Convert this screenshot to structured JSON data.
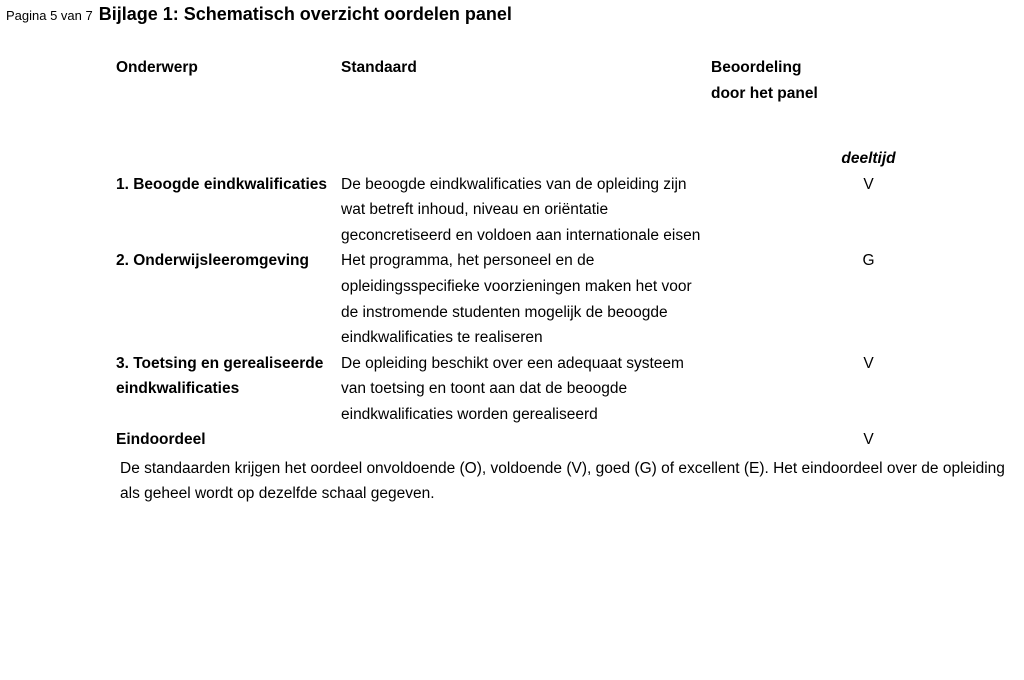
{
  "page_label": "Pagina 5 van 7",
  "title": "Bijlage 1: Schematisch overzicht oordelen panel",
  "headers": {
    "onderwerp": "Onderwerp",
    "standaard": "Standaard",
    "beoordeling_line1": "Beoordeling",
    "beoordeling_line2": "door het panel"
  },
  "subheader": "deeltijd",
  "rows": [
    {
      "onderwerp": "1. Beoogde eindkwalificaties",
      "standaard": "De beoogde eindkwalificaties van de opleiding zijn wat betreft inhoud, niveau en oriëntatie geconcretiseerd en voldoen aan internationale eisen",
      "beoordeling": "V"
    },
    {
      "onderwerp": "2. Onderwijsleeromgeving",
      "standaard": "Het programma, het personeel en de opleidingsspecifieke voorzieningen maken het voor de instromende studenten mogelijk de beoogde eindkwalificaties te realiseren",
      "beoordeling": "G"
    },
    {
      "onderwerp": "3. Toetsing en gerealiseerde eindkwalificaties",
      "standaard": "De opleiding beschikt over een adequaat systeem van toetsing en toont aan dat de beoogde eindkwalificaties worden gerealiseerd",
      "beoordeling": "V"
    }
  ],
  "eindoordeel_label": "Eindoordeel",
  "eindoordeel_value": "V",
  "footnote": "De standaarden krijgen het oordeel onvoldoende (O), voldoende (V), goed (G) of excellent (E). Het eindoordeel over de opleiding als geheel wordt op dezelfde schaal gegeven.",
  "colors": {
    "text": "#000000",
    "background": "#ffffff"
  },
  "fontsizes": {
    "pagina": 13,
    "title": 18,
    "body": 15.5
  }
}
